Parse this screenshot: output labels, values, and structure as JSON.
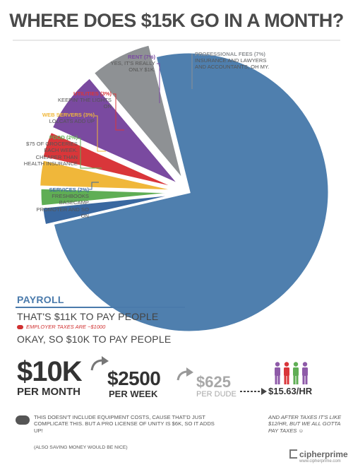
{
  "title": "WHERE DOES $15K GO IN A MONTH?",
  "chart_data": {
    "type": "pie",
    "title": "WHERE DOES $15K GO IN A MONTH?",
    "slices": [
      {
        "name": "PAYROLL",
        "percent": 73,
        "color": "#4f7fae"
      },
      {
        "name": "SERVICES (2%)",
        "percent": 2,
        "color": "#3a68a0",
        "note": "FRESHBOOKS BASECAMP PROMOTER AND SO ON"
      },
      {
        "name": "FOOD (2%)",
        "percent": 2,
        "color": "#5fae55",
        "note": "$75 OF GROCERIES EACH WEEK. CHEAPER THAN HEALTH INSURANCE"
      },
      {
        "name": "WEB SERVERS (3%)",
        "percent": 3,
        "color": "#f0b73a",
        "note": "LOLCATS ADD UP"
      },
      {
        "name": "UTILITIES (3%)",
        "percent": 3,
        "color": "#d9363a",
        "note": "KEEPIN' THE LIGHTS ON"
      },
      {
        "name": "RENT (7%)",
        "percent": 7,
        "color": "#7a4aa0",
        "note": "YES, IT'S REALLY ONLY $1K."
      },
      {
        "name": "PROFESSIONAL FEES (7%)",
        "percent": 7,
        "color": "#8e9194",
        "note": "INSURANCE AND LAWYERS AND ACCOUNTANTS, OH MY."
      }
    ]
  },
  "labels": {
    "rent": {
      "head": "RENT (7%)",
      "body": "YES, IT'S REALLY ONLY $1K.",
      "color": "#7a4aa0"
    },
    "prof": {
      "head": "PROFESSIONAL FEES (7%)",
      "body": "INSURANCE AND LAWYERS AND ACCOUNTANTS, OH MY.",
      "color": "#8e9194"
    },
    "util": {
      "head": "UTILITIES (3%)",
      "body": "KEEPIN' THE LIGHTS ON",
      "color": "#d9363a"
    },
    "web": {
      "head": "WEB SERVERS (3%)",
      "body": "LOLCATS ADD UP",
      "color": "#f0b73a"
    },
    "food": {
      "head": "FOOD (2%)",
      "body": "$75 OF GROCERIES EACH WEEK. CHEAPER THAN HEALTH INSURANCE",
      "color": "#5fae55"
    },
    "serv": {
      "head": "SERVICES (2%)",
      "body": "FRESHBOOKS BASECAMP PROMOTER AND SO ON",
      "color": "#3a68a0"
    }
  },
  "payroll": {
    "title": "PAYROLL",
    "line1": "THAT'S $11K TO PAY PEOPLE",
    "tax_note": "EMPLOYER TAXES ARE ~$1000",
    "line2": "OKAY, SO $10K TO PAY PEOPLE"
  },
  "breakdown": {
    "month_value": "$10K",
    "month_label": "PER MONTH",
    "week_value": "$2500",
    "week_label": "PER WEEK",
    "dude_value": "$625",
    "dude_label": "PER DUDE",
    "hourly": "$15.63/HR"
  },
  "people_colors": [
    "#8e5aa8",
    "#d9363a",
    "#5fae55",
    "#8e5aa8"
  ],
  "footer": {
    "note": "THIS DOESN'T INCLUDE EQUIPMENT COSTS, CAUSE THAT'D JUST COMPLICATE THIS. BUT A PRO LICENSE OF UNITY IS $6K, SO IT ADDS UP!",
    "small": "(ALSO SAVING MONEY WOULD BE NICE)",
    "after_tax": "AND AFTER TAXES IT'S LIKE $12/HR, BUT WE ALL GOTTA PAY TAXES ☺",
    "brand": "cipherprime",
    "url": "www.cipherprime.com"
  }
}
